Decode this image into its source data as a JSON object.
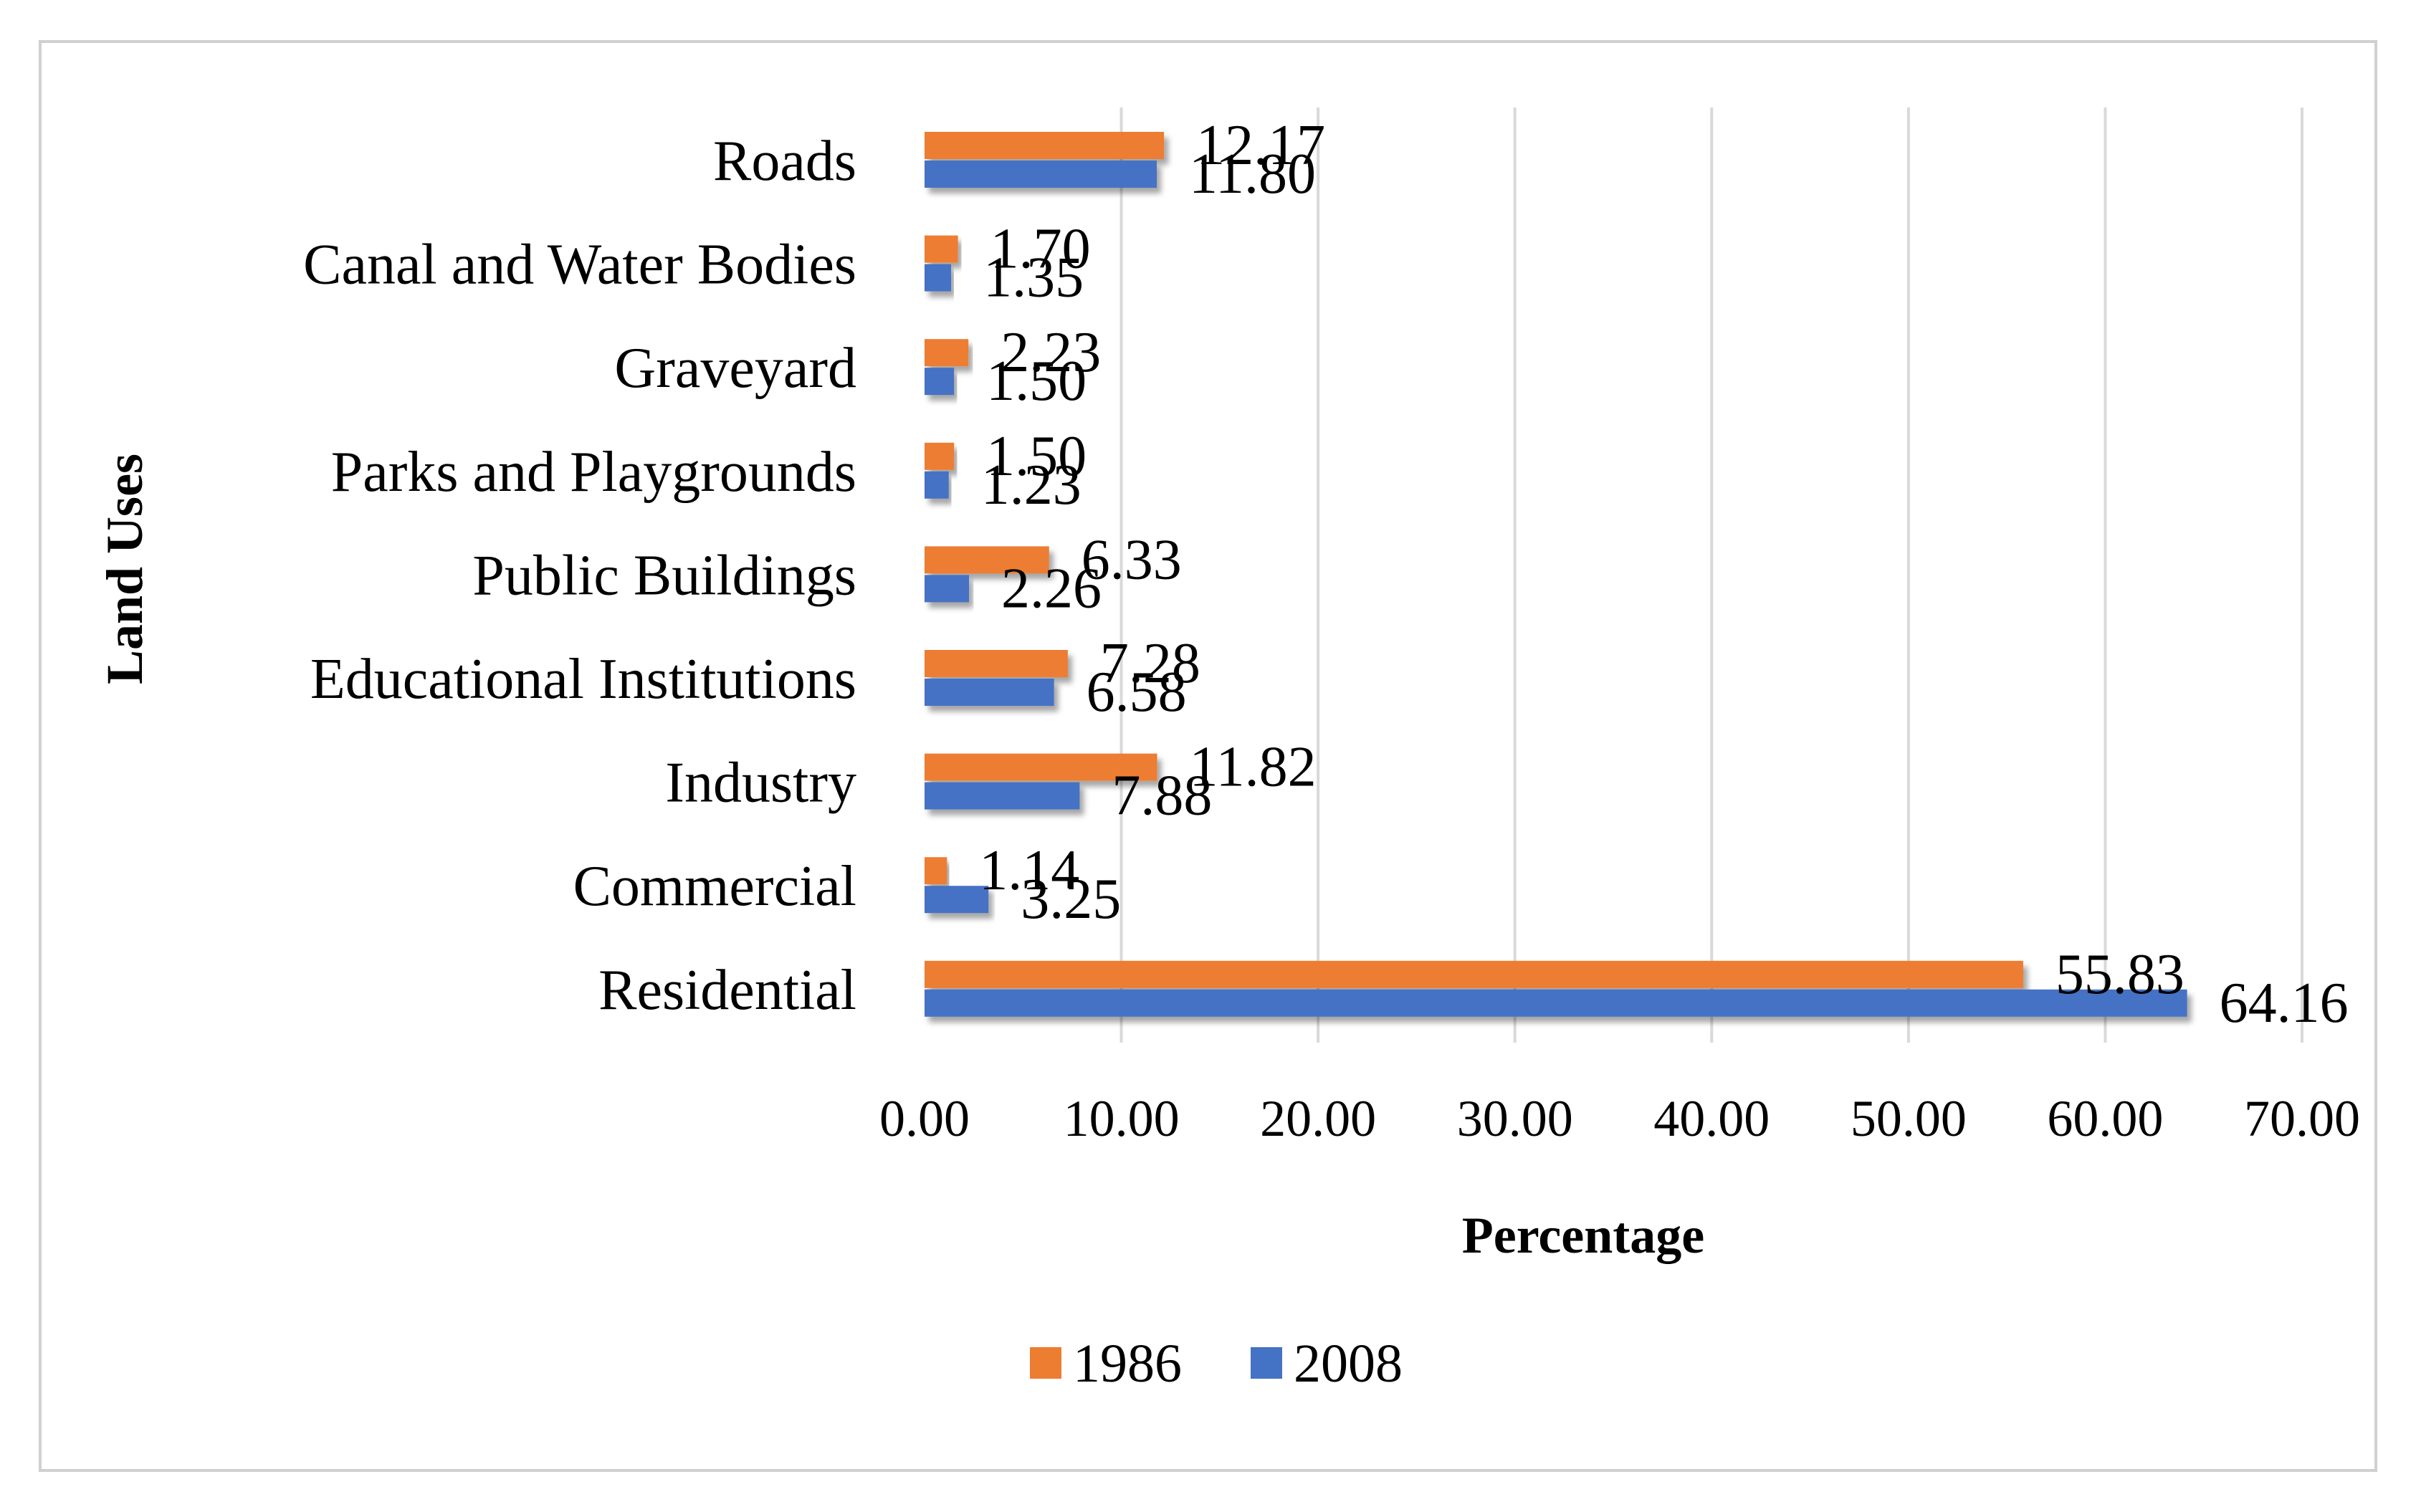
{
  "chart_data": {
    "type": "bar",
    "orientation": "horizontal",
    "title": "",
    "xlabel": "Percentage",
    "ylabel": "Land Uses",
    "xlim": [
      0,
      70
    ],
    "xticks": [
      "0.00",
      "10.00",
      "20.00",
      "30.00",
      "40.00",
      "50.00",
      "60.00",
      "70.00"
    ],
    "grid": "vertical",
    "legend_position": "bottom",
    "categories": [
      "Residential",
      "Commercial",
      "Industry",
      "Educational Institutions",
      "Public Buildings",
      "Parks and Playgrounds",
      "Graveyard",
      "Canal and Water Bodies",
      "Roads"
    ],
    "series": [
      {
        "name": "1986",
        "color": "#ED7D31",
        "values": [
          55.83,
          1.14,
          11.82,
          7.28,
          6.33,
          1.5,
          2.23,
          1.7,
          12.17
        ],
        "labels": [
          "55.83",
          "1.14",
          "11.82",
          "7.28",
          "6.33",
          "1.50",
          "2.23",
          "1.70",
          "12.17"
        ]
      },
      {
        "name": "2008",
        "color": "#4472C4",
        "values": [
          64.16,
          3.25,
          7.88,
          6.58,
          2.26,
          1.23,
          1.5,
          1.35,
          11.8
        ],
        "labels": [
          "64.16",
          "3.25",
          "7.88",
          "6.58",
          "2.26",
          "1.23",
          "1.50",
          "1.35",
          "11.80"
        ]
      }
    ]
  }
}
